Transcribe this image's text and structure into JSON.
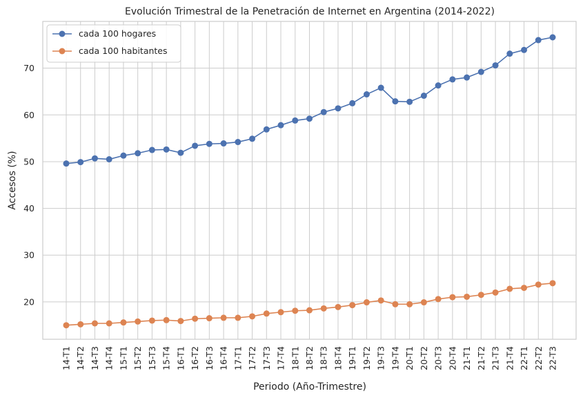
{
  "chart_data": {
    "type": "line",
    "title": "Evolución Trimestral de la Penetración de Internet en Argentina (2014-2022)",
    "xlabel": "Periodo (Año-Trimestre)",
    "ylabel": "Accesos (%)",
    "ylim": [
      12,
      80
    ],
    "yticks": [
      20,
      30,
      40,
      50,
      60,
      70
    ],
    "grid": true,
    "legend_position": "top-left",
    "categories": [
      "14-T1",
      "14-T2",
      "14-T3",
      "14-T4",
      "15-T1",
      "15-T2",
      "15-T3",
      "15-T4",
      "16-T1",
      "16-T2",
      "16-T3",
      "16-T4",
      "17-T1",
      "17-T2",
      "17-T3",
      "17-T4",
      "18-T1",
      "18-T2",
      "18-T3",
      "18-T4",
      "19-T1",
      "19-T2",
      "19-T3",
      "19-T4",
      "20-T1",
      "20-T2",
      "20-T3",
      "20-T4",
      "21-T1",
      "21-T2",
      "21-T3",
      "21-T4",
      "22-T1",
      "22-T2",
      "22-T3"
    ],
    "series": [
      {
        "name": "cada 100 hogares",
        "color": "#4c72b0",
        "values": [
          49.6,
          49.9,
          50.7,
          50.5,
          51.3,
          51.8,
          52.5,
          52.6,
          51.9,
          53.4,
          53.8,
          53.9,
          54.2,
          54.9,
          56.9,
          57.8,
          58.8,
          59.2,
          60.6,
          61.4,
          62.5,
          64.4,
          65.8,
          62.9,
          62.8,
          64.1,
          66.3,
          67.6,
          68.0,
          69.2,
          70.6,
          73.1,
          73.9,
          76.0,
          76.6
        ]
      },
      {
        "name": "cada 100 habitantes",
        "color": "#dd8452",
        "values": [
          15.0,
          15.2,
          15.4,
          15.4,
          15.6,
          15.8,
          16.0,
          16.1,
          15.9,
          16.4,
          16.5,
          16.6,
          16.6,
          16.9,
          17.5,
          17.8,
          18.1,
          18.2,
          18.6,
          18.9,
          19.3,
          19.9,
          20.3,
          19.5,
          19.5,
          19.9,
          20.6,
          21.0,
          21.1,
          21.5,
          22.0,
          22.8,
          23.0,
          23.7,
          24.0
        ]
      }
    ]
  }
}
